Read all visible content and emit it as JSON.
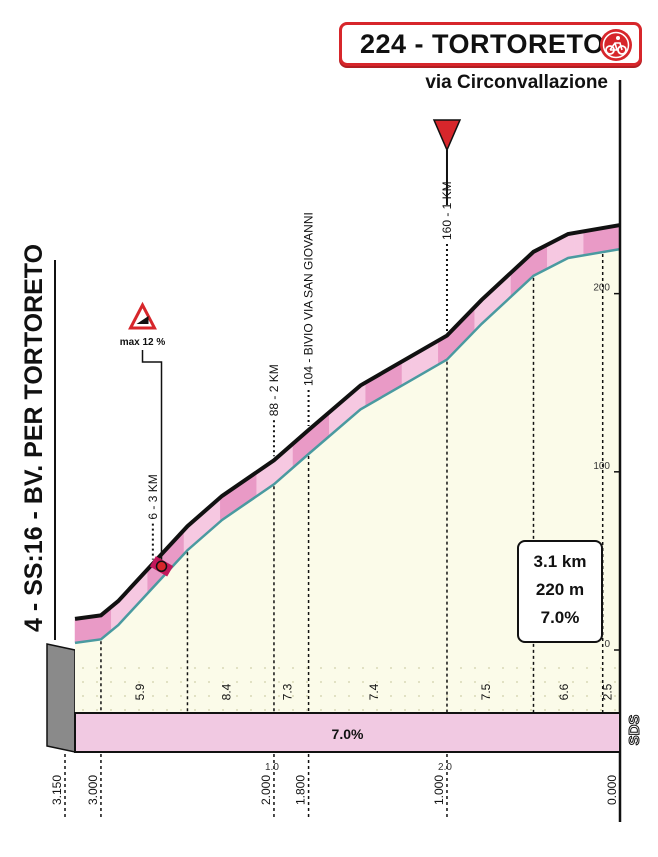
{
  "header": {
    "title": "224 - TORTORETO",
    "subtitle": "via Circonvallazione",
    "start_label": "4 - SS:16 - BV. PER TORTORETO",
    "finish_icon": "cycling-finish-icon",
    "brand_mark": "SDS"
  },
  "stats": {
    "length": "3.1 km",
    "gain": "220 m",
    "avg_gradient": "7.0%"
  },
  "colors": {
    "accent_red": "#d7262b",
    "road_pink": "#e99ac6",
    "road_pink_light": "#f6c8e1",
    "sky_fill": "#fbfbe9",
    "road_edge": "#4a9aa0",
    "bar_fill": "#f1c9e2"
  },
  "chart_data": {
    "type": "area",
    "title": "224 - TORTORETO",
    "subtitle": "via Circonvallazione",
    "x_unit": "km to finish",
    "y_unit": "m",
    "xlim": [
      3.15,
      0.0
    ],
    "ylim": [
      0,
      220
    ],
    "y_ticks": [
      0,
      100,
      200
    ],
    "x_ticks_top": [
      "1.0",
      "2.0"
    ],
    "x_ticks_bottom": [
      "3.150",
      "3.000",
      "2.000",
      "1.800",
      "1.000",
      "0.000"
    ],
    "profile": [
      {
        "x": 3.15,
        "y": 4
      },
      {
        "x": 3.0,
        "y": 6
      },
      {
        "x": 2.9,
        "y": 14
      },
      {
        "x": 2.5,
        "y": 56
      },
      {
        "x": 2.3,
        "y": 73
      },
      {
        "x": 2.0,
        "y": 93
      },
      {
        "x": 1.8,
        "y": 110
      },
      {
        "x": 1.5,
        "y": 135
      },
      {
        "x": 1.0,
        "y": 163
      },
      {
        "x": 0.8,
        "y": 183
      },
      {
        "x": 0.5,
        "y": 210
      },
      {
        "x": 0.3,
        "y": 220
      },
      {
        "x": 0.0,
        "y": 225
      }
    ],
    "segment_gradients": [
      {
        "label": "5.9",
        "from": 3.0,
        "to": 2.5
      },
      {
        "label": "8.4",
        "from": 2.5,
        "to": 2.0
      },
      {
        "label": "7.3",
        "from": 2.0,
        "to": 1.8
      },
      {
        "label": "7.4",
        "from": 1.8,
        "to": 1.0
      },
      {
        "label": "7.5",
        "from": 1.0,
        "to": 0.5
      },
      {
        "label": "6.6",
        "from": 0.5,
        "to": 0.1
      },
      {
        "label": "2.5",
        "from": 0.1,
        "to": 0.0
      }
    ],
    "overall_gradient_label": "7.0%",
    "annotations": [
      {
        "x": 2.7,
        "label": "6 - 3 KM"
      },
      {
        "x": 2.0,
        "label": "88 - 2 KM"
      },
      {
        "x": 1.8,
        "label": "104 - BIVIO VIA SAN GIOVANNI"
      },
      {
        "x": 1.0,
        "label": "160 - 1 KM",
        "marker": "red-triangle"
      }
    ],
    "max_gradient": {
      "x": 2.65,
      "label": "max 12 %"
    }
  }
}
